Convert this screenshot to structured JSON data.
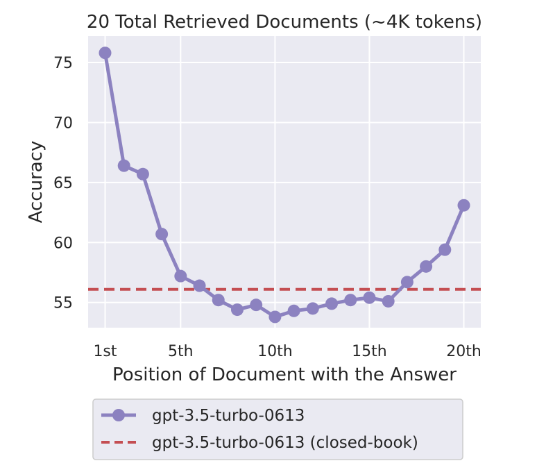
{
  "chart_data": {
    "type": "line",
    "title": "20 Total Retrieved Documents (~4K tokens)",
    "xlabel": "Position of Document with the Answer",
    "ylabel": "Accuracy",
    "x": [
      1,
      2,
      3,
      4,
      5,
      6,
      7,
      8,
      9,
      10,
      11,
      12,
      13,
      14,
      15,
      16,
      17,
      18,
      19,
      20
    ],
    "x_ticks": [
      1,
      5,
      10,
      15,
      20
    ],
    "x_tick_labels": [
      "1st",
      "5th",
      "10th",
      "15th",
      "20th"
    ],
    "y_ticks": [
      55,
      60,
      65,
      70,
      75
    ],
    "y_tick_labels": [
      "55",
      "60",
      "65",
      "70",
      "75"
    ],
    "xlim": [
      0.1,
      20.9
    ],
    "ylim": [
      52.9,
      77.2
    ],
    "grid": true,
    "legend_position": "bottom",
    "series": [
      {
        "name": "gpt-3.5-turbo-0613",
        "color": "#8c82c0",
        "style": "solid-with-markers",
        "values": [
          75.8,
          66.4,
          65.7,
          60.7,
          57.2,
          56.4,
          55.2,
          54.4,
          54.8,
          53.8,
          54.3,
          54.5,
          54.9,
          55.2,
          55.4,
          55.1,
          56.7,
          58.0,
          59.4,
          63.1
        ]
      },
      {
        "name": "gpt-3.5-turbo-0613 (closed-book)",
        "color": "#c44e52",
        "style": "dashed",
        "value": 56.1
      }
    ]
  }
}
